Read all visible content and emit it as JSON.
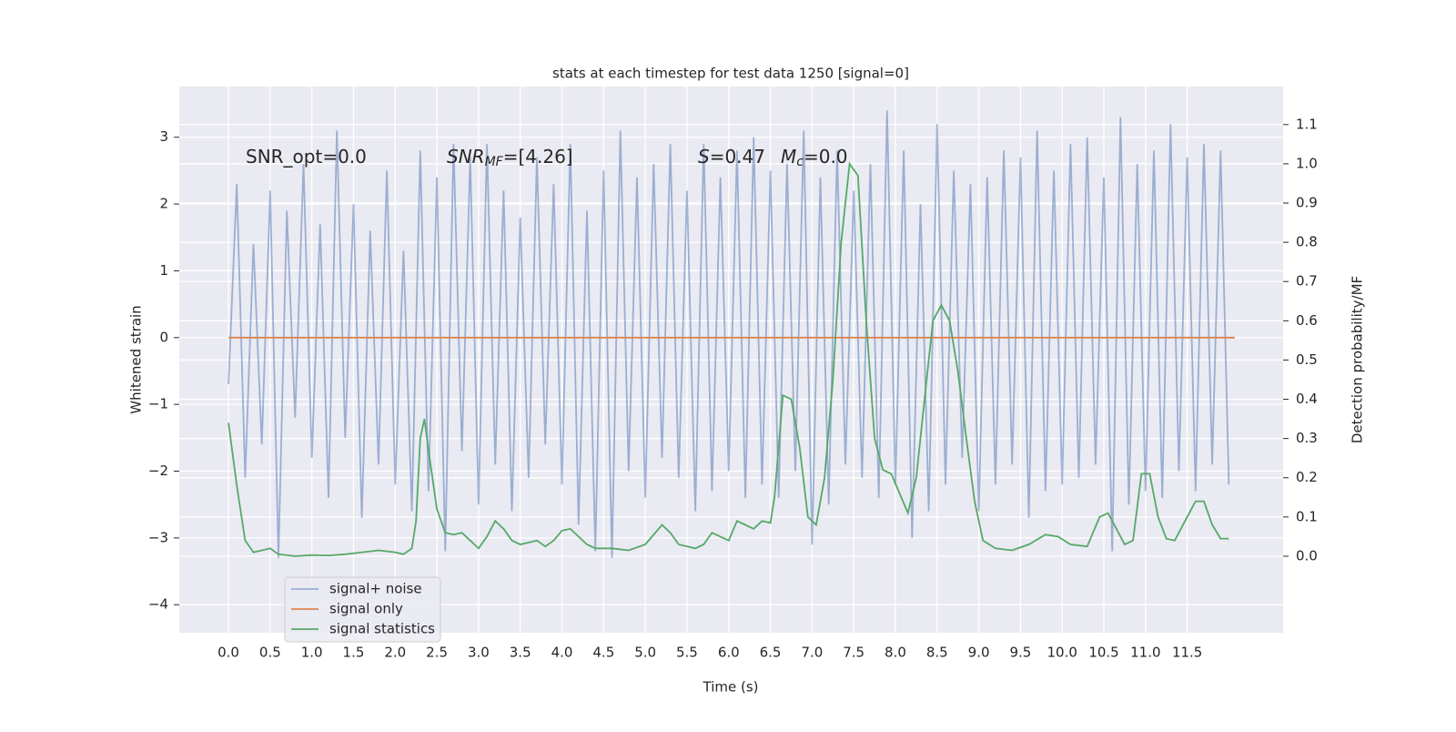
{
  "chart_data": {
    "type": "line",
    "title": "stats at each timestep for test data 1250 [signal=0]",
    "xlabel": "Time (s)",
    "ylabel": "Whitened strain",
    "y2label": "Detection probability/MF",
    "xlim": [
      -0.59,
      12.65
    ],
    "ylim": [
      -4.42,
      3.76
    ],
    "y2lim": [
      -0.195,
      1.197
    ],
    "grid": true,
    "legend": "lower left",
    "xticks": [
      {
        "value": 0,
        "label": "0.0"
      },
      {
        "value": 0.5,
        "label": "0.5"
      },
      {
        "value": 1,
        "label": "1.0"
      },
      {
        "value": 1.5,
        "label": "1.5"
      },
      {
        "value": 2,
        "label": "2.0"
      },
      {
        "value": 2.5,
        "label": "2.5"
      },
      {
        "value": 3,
        "label": "3.0"
      },
      {
        "value": 3.5,
        "label": "3.5"
      },
      {
        "value": 4,
        "label": "4.0"
      },
      {
        "value": 4.5,
        "label": "4.5"
      },
      {
        "value": 5,
        "label": "5.0"
      },
      {
        "value": 5.5,
        "label": "5.5"
      },
      {
        "value": 6,
        "label": "6.0"
      },
      {
        "value": 6.5,
        "label": "6.5"
      },
      {
        "value": 7,
        "label": "7.0"
      },
      {
        "value": 7.5,
        "label": "7.5"
      },
      {
        "value": 8,
        "label": "8.0"
      },
      {
        "value": 8.5,
        "label": "8.5"
      },
      {
        "value": 9,
        "label": "9.0"
      },
      {
        "value": 9.5,
        "label": "9.5"
      },
      {
        "value": 10,
        "label": "10.0"
      },
      {
        "value": 10.5,
        "label": "10.5"
      },
      {
        "value": 11,
        "label": "11.0"
      },
      {
        "value": 11.5,
        "label": "11.5"
      }
    ],
    "yticks": [
      {
        "value": -4,
        "label": "−4"
      },
      {
        "value": -3,
        "label": "−3"
      },
      {
        "value": -2,
        "label": "−2"
      },
      {
        "value": -1,
        "label": "−1"
      },
      0,
      1,
      2,
      3
    ],
    "y2ticks": [
      {
        "value": 0,
        "label": "0.0"
      },
      {
        "value": 0.1,
        "label": "0.1"
      },
      {
        "value": 0.2,
        "label": "0.2"
      },
      {
        "value": 0.3,
        "label": "0.3"
      },
      {
        "value": 0.4,
        "label": "0.4"
      },
      {
        "value": 0.5,
        "label": "0.5"
      },
      {
        "value": 0.6,
        "label": "0.6"
      },
      {
        "value": 0.7,
        "label": "0.7"
      },
      {
        "value": 0.8,
        "label": "0.8"
      },
      {
        "value": 0.9,
        "label": "0.9"
      },
      {
        "value": 1,
        "label": "1.0"
      },
      {
        "value": 1.1,
        "label": "1.1"
      }
    ],
    "annotations": [
      {
        "text": "SNR_opt=0.0"
      },
      {
        "main": "SNR",
        "sub": "MF",
        "rest": "=[4.26]"
      },
      {
        "main": "S",
        "rest": "=0.47"
      },
      {
        "main": "M",
        "sub": "c",
        "rest": "=0.0"
      }
    ],
    "series": [
      {
        "name": "signal+ noise",
        "color": "#4c72b0",
        "opacity": 0.5,
        "x": [
          0,
          0.1,
          0.2,
          0.3,
          0.4,
          0.5,
          0.6,
          0.7,
          0.8,
          0.9,
          1,
          1.1,
          1.2,
          1.3,
          1.4,
          1.5,
          1.6,
          1.7,
          1.8,
          1.9,
          2,
          2.1,
          2.2,
          2.3,
          2.4,
          2.5,
          2.6,
          2.7,
          2.8,
          2.9,
          3,
          3.1,
          3.2,
          3.3,
          3.4,
          3.5,
          3.6,
          3.7,
          3.8,
          3.9,
          4,
          4.1,
          4.2,
          4.3,
          4.4,
          4.5,
          4.6,
          4.7,
          4.8,
          4.9,
          5,
          5.1,
          5.2,
          5.3,
          5.4,
          5.5,
          5.6,
          5.7,
          5.8,
          5.9,
          6,
          6.1,
          6.2,
          6.3,
          6.4,
          6.5,
          6.6,
          6.7,
          6.8,
          6.9,
          7,
          7.1,
          7.2,
          7.3,
          7.4,
          7.5,
          7.6,
          7.7,
          7.8,
          7.9,
          8,
          8.1,
          8.2,
          8.3,
          8.4,
          8.5,
          8.6,
          8.7,
          8.8,
          8.9,
          9,
          9.1,
          9.2,
          9.3,
          9.4,
          9.5,
          9.6,
          9.7,
          9.8,
          9.9,
          10,
          10.1,
          10.2,
          10.3,
          10.4,
          10.5,
          10.6,
          10.7,
          10.8,
          10.9,
          11,
          11.1,
          11.2,
          11.3,
          11.4,
          11.5,
          11.6,
          11.7,
          11.8,
          11.9,
          12
        ],
        "values": [
          -0.7,
          2.3,
          -2.1,
          1.4,
          -1.6,
          2.2,
          -3.3,
          1.9,
          -1.2,
          2.6,
          -1.8,
          1.7,
          -2.4,
          3.1,
          -1.5,
          2.0,
          -2.7,
          1.6,
          -1.9,
          2.5,
          -2.2,
          1.3,
          -2.6,
          2.8,
          -2.3,
          2.4,
          -3.2,
          2.9,
          -1.7,
          2.7,
          -2.5,
          2.9,
          -1.9,
          2.2,
          -2.6,
          1.8,
          -2.1,
          2.7,
          -1.6,
          2.3,
          -2.2,
          2.9,
          -2.8,
          1.9,
          -3.2,
          2.5,
          -3.3,
          3.1,
          -2.0,
          2.4,
          -2.4,
          2.6,
          -1.8,
          2.9,
          -2.1,
          2.2,
          -2.6,
          2.9,
          -2.3,
          2.4,
          -2.0,
          2.8,
          -2.4,
          3.0,
          -2.2,
          2.5,
          -2.4,
          2.6,
          -2.0,
          3.1,
          -3.1,
          2.4,
          -2.5,
          2.8,
          -1.9,
          2.2,
          -2.1,
          2.6,
          -2.4,
          3.4,
          -2.2,
          2.8,
          -3.0,
          2.0,
          -2.6,
          3.2,
          -2.2,
          2.5,
          -1.8,
          2.3,
          -2.6,
          2.4,
          -2.2,
          2.8,
          -1.9,
          2.7,
          -2.7,
          3.1,
          -2.3,
          2.5,
          -2.2,
          2.9,
          -2.1,
          3.0,
          -1.9,
          2.4,
          -3.2,
          3.3,
          -2.5,
          2.6,
          -2.3,
          2.8,
          -2.4,
          3.2,
          -2.0,
          2.7,
          -2.3,
          2.9,
          -1.9,
          2.8,
          -2.2
        ]
      },
      {
        "name": "signal only",
        "color": "#dd8452",
        "x": [
          0,
          12.07
        ],
        "values": [
          0,
          0
        ]
      },
      {
        "name": "signal statistics",
        "color": "#55a868",
        "axis": "y2",
        "x": [
          0,
          0.1,
          0.2,
          0.3,
          0.4,
          0.5,
          0.6,
          0.8,
          1,
          1.2,
          1.4,
          1.6,
          1.8,
          2,
          2.1,
          2.2,
          2.25,
          2.3,
          2.35,
          2.4,
          2.5,
          2.6,
          2.7,
          2.8,
          2.9,
          3,
          3.1,
          3.2,
          3.3,
          3.4,
          3.5,
          3.6,
          3.7,
          3.8,
          3.9,
          4,
          4.1,
          4.2,
          4.3,
          4.4,
          4.6,
          4.8,
          5,
          5.2,
          5.3,
          5.4,
          5.6,
          5.7,
          5.8,
          5.9,
          6,
          6.1,
          6.2,
          6.3,
          6.4,
          6.5,
          6.55,
          6.65,
          6.75,
          6.85,
          6.95,
          7.05,
          7.15,
          7.25,
          7.35,
          7.45,
          7.55,
          7.65,
          7.75,
          7.85,
          7.95,
          8.05,
          8.15,
          8.25,
          8.35,
          8.45,
          8.55,
          8.65,
          8.75,
          8.85,
          8.95,
          9.05,
          9.2,
          9.4,
          9.6,
          9.8,
          9.95,
          10.1,
          10.3,
          10.45,
          10.55,
          10.65,
          10.75,
          10.85,
          10.95,
          11.05,
          11.15,
          11.25,
          11.35,
          11.5,
          11.6,
          11.7,
          11.8,
          11.9,
          12
        ],
        "values": [
          0.34,
          0.18,
          0.04,
          0.01,
          0.015,
          0.02,
          0.005,
          0,
          0.003,
          0.002,
          0.005,
          0.01,
          0.015,
          0.01,
          0.005,
          0.02,
          0.09,
          0.3,
          0.35,
          0.27,
          0.12,
          0.06,
          0.055,
          0.06,
          0.04,
          0.02,
          0.05,
          0.09,
          0.07,
          0.04,
          0.03,
          0.035,
          0.04,
          0.025,
          0.04,
          0.065,
          0.07,
          0.05,
          0.03,
          0.02,
          0.02,
          0.015,
          0.03,
          0.08,
          0.06,
          0.03,
          0.02,
          0.03,
          0.06,
          0.05,
          0.04,
          0.09,
          0.08,
          0.07,
          0.09,
          0.085,
          0.15,
          0.41,
          0.4,
          0.28,
          0.1,
          0.08,
          0.2,
          0.45,
          0.8,
          1.0,
          0.97,
          0.6,
          0.3,
          0.22,
          0.21,
          0.16,
          0.11,
          0.2,
          0.4,
          0.6,
          0.64,
          0.6,
          0.47,
          0.3,
          0.14,
          0.04,
          0.02,
          0.015,
          0.03,
          0.055,
          0.05,
          0.03,
          0.025,
          0.1,
          0.11,
          0.07,
          0.03,
          0.04,
          0.21,
          0.21,
          0.1,
          0.045,
          0.04,
          0.1,
          0.14,
          0.14,
          0.08,
          0.045,
          0.045
        ]
      }
    ]
  }
}
